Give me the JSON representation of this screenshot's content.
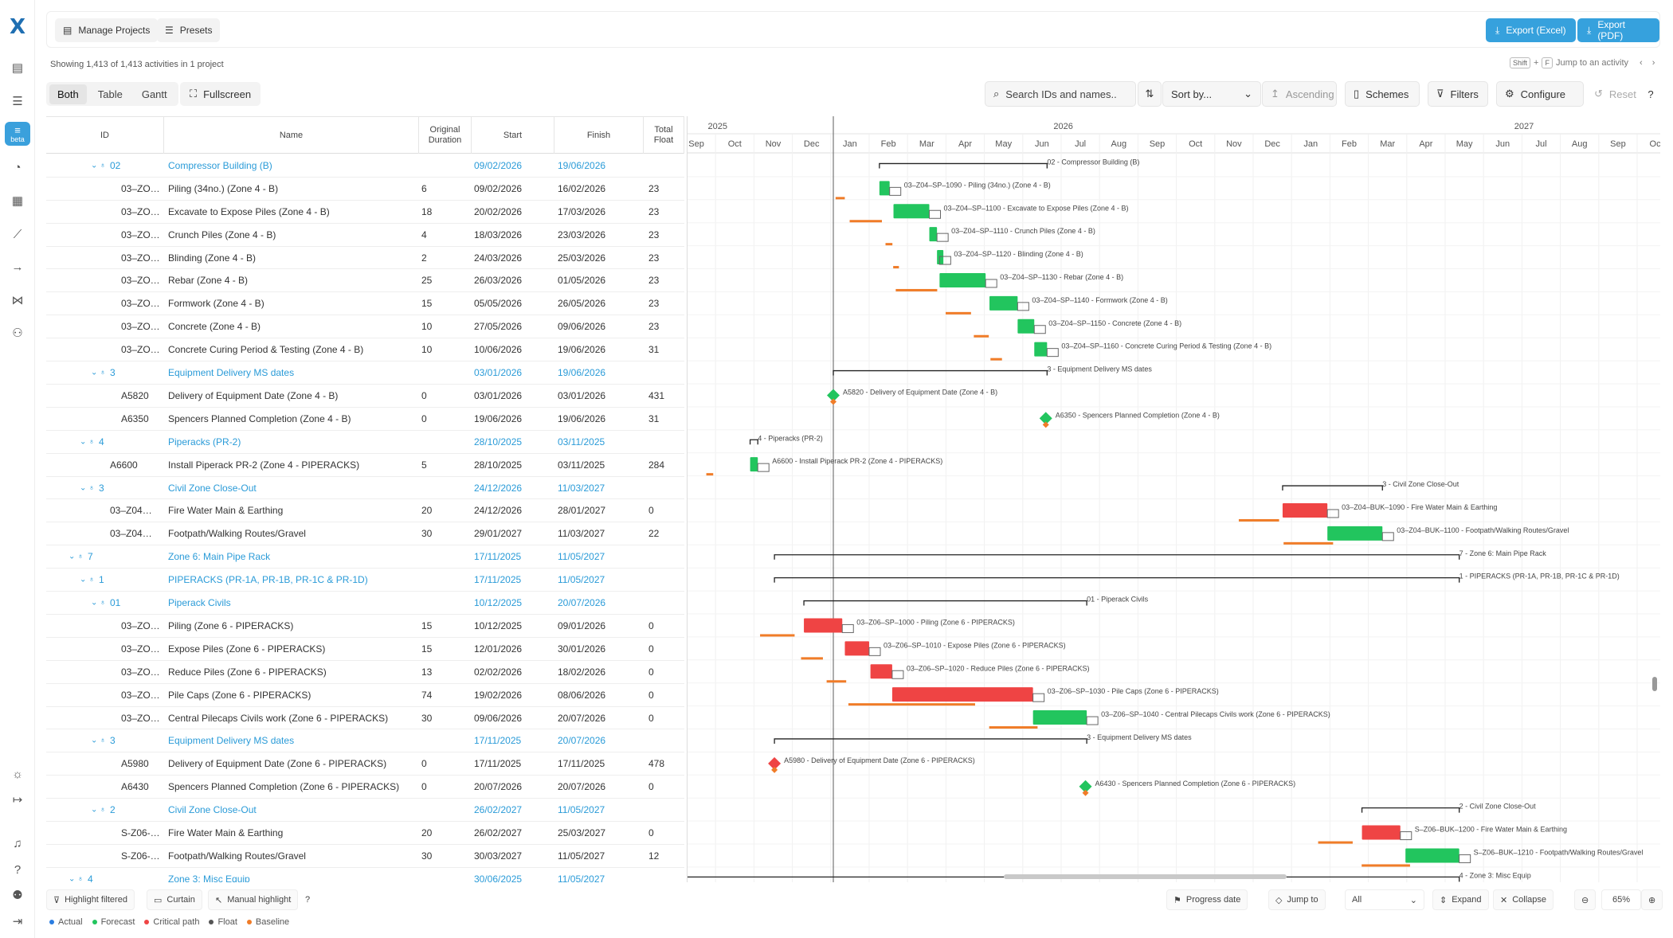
{
  "app": {
    "logo": "X"
  },
  "rail": {
    "items": [
      {
        "icon": "clipboard-icon"
      },
      {
        "icon": "list-chart-icon"
      },
      {
        "icon": "gantt-icon",
        "badge": "beta"
      },
      {
        "icon": "gauge-icon"
      },
      {
        "icon": "dashboard-icon"
      },
      {
        "icon": "line-chart-icon"
      },
      {
        "icon": "arrow-right-icon"
      },
      {
        "icon": "share-icon"
      },
      {
        "icon": "user-settings-icon"
      }
    ],
    "bottom": [
      {
        "icon": "sun-icon"
      },
      {
        "icon": "collapse-icon"
      },
      {
        "icon": "bell-icon"
      },
      {
        "icon": "help-icon"
      },
      {
        "icon": "users-icon"
      },
      {
        "icon": "logout-icon"
      }
    ]
  },
  "topbar": {
    "manage_projects": "Manage Projects",
    "presets": "Presets",
    "export_excel": "Export (Excel)",
    "export_pdf": "Export (PDF)"
  },
  "summary": "Showing 1,413 of 1,413 activities in 1 project",
  "jump": {
    "k1": "Shift",
    "plus": "+",
    "k2": "F",
    "label": "Jump to an activity"
  },
  "view": {
    "tabs": [
      "Both",
      "Table",
      "Gantt"
    ],
    "active": "Both",
    "fullscreen": "Fullscreen"
  },
  "toolbar": {
    "search_placeholder": "Search IDs and names..",
    "sort_placeholder": "Sort by...",
    "ascending": "Ascending",
    "schemes": "Schemes",
    "filters": "Filters",
    "configure": "Configure",
    "reset": "Reset"
  },
  "columns": {
    "id": "ID",
    "name": "Name",
    "duration": "Original Duration",
    "start": "Start",
    "finish": "Finish",
    "float": "Total Float"
  },
  "rows": [
    {
      "indent": 2,
      "hdr": true,
      "id": "02",
      "name": "Compressor Building (B)",
      "dur": "",
      "start": "09/02/2026",
      "finish": "19/06/2026",
      "fl": ""
    },
    {
      "indent": 3,
      "id": "03–ZO…",
      "name": "Piling (34no.) (Zone 4 - B)",
      "dur": "6",
      "start": "09/02/2026",
      "finish": "16/02/2026",
      "fl": "23"
    },
    {
      "indent": 3,
      "id": "03–ZO…",
      "name": "Excavate to Expose Piles (Zone 4 - B)",
      "dur": "18",
      "start": "20/02/2026",
      "finish": "17/03/2026",
      "fl": "23"
    },
    {
      "indent": 3,
      "id": "03–ZO…",
      "name": "Crunch Piles (Zone 4 - B)",
      "dur": "4",
      "start": "18/03/2026",
      "finish": "23/03/2026",
      "fl": "23"
    },
    {
      "indent": 3,
      "id": "03–ZO…",
      "name": "Blinding (Zone 4 - B)",
      "dur": "2",
      "start": "24/03/2026",
      "finish": "25/03/2026",
      "fl": "23"
    },
    {
      "indent": 3,
      "id": "03–ZO…",
      "name": "Rebar (Zone 4 - B)",
      "dur": "25",
      "start": "26/03/2026",
      "finish": "01/05/2026",
      "fl": "23"
    },
    {
      "indent": 3,
      "id": "03–ZO…",
      "name": "Formwork (Zone 4 - B)",
      "dur": "15",
      "start": "05/05/2026",
      "finish": "26/05/2026",
      "fl": "23"
    },
    {
      "indent": 3,
      "id": "03–ZO…",
      "name": "Concrete (Zone 4 - B)",
      "dur": "10",
      "start": "27/05/2026",
      "finish": "09/06/2026",
      "fl": "23"
    },
    {
      "indent": 3,
      "id": "03–ZO…",
      "name": "Concrete Curing Period & Testing (Zone 4 - B)",
      "dur": "10",
      "start": "10/06/2026",
      "finish": "19/06/2026",
      "fl": "31"
    },
    {
      "indent": 2,
      "hdr": true,
      "id": "3",
      "name": "Equipment Delivery MS dates",
      "dur": "",
      "start": "03/01/2026",
      "finish": "19/06/2026",
      "fl": ""
    },
    {
      "indent": 3,
      "id": "A5820",
      "name": "Delivery of Equipment Date (Zone 4 - B)",
      "dur": "0",
      "start": "03/01/2026",
      "finish": "03/01/2026",
      "fl": "431"
    },
    {
      "indent": 3,
      "id": "A6350",
      "name": "Spencers Planned Completion (Zone 4 - B)",
      "dur": "0",
      "start": "19/06/2026",
      "finish": "19/06/2026",
      "fl": "31"
    },
    {
      "indent": 1,
      "hdr": true,
      "id": "4",
      "name": "Piperacks (PR-2)",
      "dur": "",
      "start": "28/10/2025",
      "finish": "03/11/2025",
      "fl": ""
    },
    {
      "indent": 2,
      "id": "A6600",
      "name": "Install Piperack PR-2 (Zone 4 - PIPERACKS)",
      "dur": "5",
      "start": "28/10/2025",
      "finish": "03/11/2025",
      "fl": "284"
    },
    {
      "indent": 1,
      "hdr": true,
      "id": "3",
      "name": "Civil Zone Close-Out",
      "dur": "",
      "start": "24/12/2026",
      "finish": "11/03/2027",
      "fl": ""
    },
    {
      "indent": 2,
      "id": "03–Z04…",
      "name": "Fire Water Main & Earthing",
      "dur": "20",
      "start": "24/12/2026",
      "finish": "28/01/2027",
      "fl": "0"
    },
    {
      "indent": 2,
      "id": "03–Z04…",
      "name": "Footpath/Walking Routes/Gravel",
      "dur": "30",
      "start": "29/01/2027",
      "finish": "11/03/2027",
      "fl": "22"
    },
    {
      "indent": 0,
      "hdr": true,
      "id": "7",
      "name": "Zone 6: Main Pipe Rack",
      "dur": "",
      "start": "17/11/2025",
      "finish": "11/05/2027",
      "fl": ""
    },
    {
      "indent": 1,
      "hdr": true,
      "id": "1",
      "name": "PIPERACKS (PR-1A, PR-1B, PR-1C & PR-1D)",
      "dur": "",
      "start": "17/11/2025",
      "finish": "11/05/2027",
      "fl": ""
    },
    {
      "indent": 2,
      "hdr": true,
      "id": "01",
      "name": "Piperack Civils",
      "dur": "",
      "start": "10/12/2025",
      "finish": "20/07/2026",
      "fl": ""
    },
    {
      "indent": 3,
      "id": "03–ZO…",
      "name": "Piling (Zone 6 - PIPERACKS)",
      "dur": "15",
      "start": "10/12/2025",
      "finish": "09/01/2026",
      "fl": "0"
    },
    {
      "indent": 3,
      "id": "03–ZO…",
      "name": "Expose Piles (Zone 6 - PIPERACKS)",
      "dur": "15",
      "start": "12/01/2026",
      "finish": "30/01/2026",
      "fl": "0"
    },
    {
      "indent": 3,
      "id": "03–ZO…",
      "name": "Reduce Piles (Zone 6 - PIPERACKS)",
      "dur": "13",
      "start": "02/02/2026",
      "finish": "18/02/2026",
      "fl": "0"
    },
    {
      "indent": 3,
      "id": "03–ZO…",
      "name": "Pile Caps (Zone 6 - PIPERACKS)",
      "dur": "74",
      "start": "19/02/2026",
      "finish": "08/06/2026",
      "fl": "0"
    },
    {
      "indent": 3,
      "id": "03–ZO…",
      "name": "Central Pilecaps Civils work (Zone 6 - PIPERACKS)",
      "dur": "30",
      "start": "09/06/2026",
      "finish": "20/07/2026",
      "fl": "0"
    },
    {
      "indent": 2,
      "hdr": true,
      "id": "3",
      "name": "Equipment Delivery MS dates",
      "dur": "",
      "start": "17/11/2025",
      "finish": "20/07/2026",
      "fl": ""
    },
    {
      "indent": 3,
      "id": "A5980",
      "name": "Delivery of Equipment Date (Zone 6 - PIPERACKS)",
      "dur": "0",
      "start": "17/11/2025",
      "finish": "17/11/2025",
      "fl": "478"
    },
    {
      "indent": 3,
      "id": "A6430",
      "name": "Spencers Planned Completion (Zone 6 - PIPERACKS)",
      "dur": "0",
      "start": "20/07/2026",
      "finish": "20/07/2026",
      "fl": "0"
    },
    {
      "indent": 2,
      "hdr": true,
      "id": "2",
      "name": "Civil Zone Close-Out",
      "dur": "",
      "start": "26/02/2027",
      "finish": "11/05/2027",
      "fl": ""
    },
    {
      "indent": 3,
      "id": "S-Z06-…",
      "name": "Fire Water Main & Earthing",
      "dur": "20",
      "start": "26/02/2027",
      "finish": "25/03/2027",
      "fl": "0"
    },
    {
      "indent": 3,
      "id": "S-Z06-…",
      "name": "Footpath/Walking Routes/Gravel",
      "dur": "30",
      "start": "30/03/2027",
      "finish": "11/05/2027",
      "fl": "12"
    },
    {
      "indent": 0,
      "hdr": true,
      "id": "4",
      "name": "Zone 3: Misc Equip",
      "dur": "",
      "start": "30/06/2025",
      "finish": "11/05/2027",
      "fl": ""
    }
  ],
  "timeline": {
    "years": [
      "2025",
      "2026",
      "2027"
    ],
    "months": [
      "Sep",
      "Oct",
      "Nov",
      "Dec",
      "Jan",
      "Feb",
      "Mar",
      "Apr",
      "May",
      "Jun",
      "Jul",
      "Aug",
      "Sep",
      "Oct",
      "Nov",
      "Dec",
      "Jan",
      "Feb",
      "Mar",
      "Apr",
      "May",
      "Jun",
      "Jul",
      "Aug",
      "Sep",
      "Oct"
    ]
  },
  "gantt_labels": [
    "02 - Compressor Building (B)",
    "03–Z04–SP–1090 - Piling (34no.) (Zone 4 - B)",
    "03–Z04–SP–1100 - Excavate to Expose Piles (Zone 4 - B)",
    "03–Z04–SP–1110 - Crunch Piles (Zone 4 - B)",
    "03–Z04–SP–1120 - Blinding (Zone 4 - B)",
    "03–Z04–SP–1130 - Rebar (Zone 4 - B)",
    "03–Z04–SP–1140 - Formwork (Zone 4 - B)",
    "03–Z04–SP–1150 - Concrete (Zone 4 - B)",
    "03–Z04–SP–1160 - Concrete Curing Period & Testing (Zone 4 - B)",
    "3 - Equipment Delivery MS dates",
    "A5820 - Delivery of Equipment Date (Zone 4 - B)",
    "A6350 - Spencers Planned Completion (Zone 4 - B)",
    "4 - Piperacks (PR-2)",
    "A6600 - Install Piperack PR-2 (Zone 4 - PIPERACKS)",
    "3 - Civil Zone Close-Out",
    "03–Z04–BUK–1090 - Fire Water Main & Earthing",
    "03–Z04–BUK–1100 - Footpath/Walking Routes/Gravel",
    "7 - Zone 6: Main Pipe Rack",
    "1 - PIPERACKS (PR-1A, PR-1B, PR-1C & PR-1D)",
    "01 - Piperack Civils",
    "03–Z06–SP–1000 - Piling (Zone 6 - PIPERACKS)",
    "03–Z06–SP–1010 - Expose Piles (Zone 6 - PIPERACKS)",
    "03–Z06–SP–1020 - Reduce Piles (Zone 6 - PIPERACKS)",
    "03–Z06–SP–1030 - Pile Caps (Zone 6 - PIPERACKS)",
    "03–Z06–SP–1040 - Central Pilecaps Civils work (Zone 6 - PIPERACKS)",
    "3 - Equipment Delivery MS dates",
    "A5980 - Delivery of Equipment Date (Zone 6 - PIPERACKS)",
    "A6430 - Spencers Planned Completion (Zone 6 - PIPERACKS)",
    "2 - Civil Zone Close-Out",
    "S–Z06–BUK–1200 - Fire Water Main & Earthing",
    "S–Z06–BUK–1210 - Footpath/Walking Routes/Gravel",
    "4 - Zone 3: Misc Equip"
  ],
  "bottom": {
    "highlight_filtered": "Highlight filtered",
    "curtain": "Curtain",
    "manual_highlight": "Manual highlight",
    "progress_date": "Progress date",
    "jump_to": "Jump to",
    "all": "All",
    "expand": "Expand",
    "collapse": "Collapse",
    "zoom": "65%"
  },
  "legend": [
    {
      "label": "Actual",
      "color": "#2a7de1"
    },
    {
      "label": "Forecast",
      "color": "#22c55e"
    },
    {
      "label": "Critical path",
      "color": "#ef4444"
    },
    {
      "label": "Float",
      "color": "#555555"
    },
    {
      "label": "Baseline",
      "color": "#f07c28"
    }
  ],
  "colors": {
    "accent": "#36a1dd",
    "forecast": "#22c55e",
    "critical": "#ef4444",
    "baseline": "#f07c28"
  }
}
